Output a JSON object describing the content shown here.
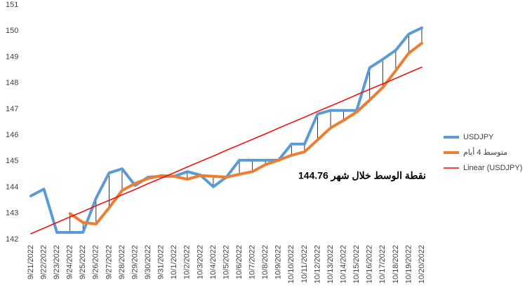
{
  "chart_data": {
    "type": "line",
    "categories": [
      "9/21/2022",
      "9/22/2022",
      "9/23/2022",
      "9/24/2022",
      "9/25/2022",
      "9/26/2022",
      "9/27/2022",
      "9/28/2022",
      "9/29/2022",
      "9/30/2022",
      "9/31/2022",
      "10/1/2022",
      "10/2/2022",
      "10/3/2022",
      "10/4/2022",
      "10/5/2022",
      "10/6/2022",
      "10/7/2022",
      "10/8/2022",
      "10/9/2022",
      "10/10/2022",
      "10/11/2022",
      "10/12/2022",
      "10/13/2022",
      "10/14/2022",
      "10/15/2022",
      "10/16/2022",
      "10/17/2022",
      "10/18/2022",
      "10/19/2022",
      "10/20/2022"
    ],
    "series": [
      {
        "name": "USDJPY",
        "color": "#5b9bd5",
        "values": [
          143.67,
          143.93,
          142.27,
          142.27,
          142.27,
          143.58,
          144.55,
          144.71,
          144.07,
          144.39,
          144.42,
          144.42,
          144.6,
          144.47,
          144.02,
          144.39,
          145.04,
          145.04,
          145.04,
          145.04,
          145.66,
          145.66,
          146.81,
          146.95,
          146.95,
          146.95,
          148.59,
          148.91,
          149.26,
          149.88,
          150.12
        ]
      },
      {
        "name": "متوسط 4  أيام",
        "color": "#ed7d31",
        "values": [
          null,
          null,
          null,
          142.99,
          142.65,
          142.59,
          143.21,
          143.88,
          144.15,
          144.34,
          144.45,
          144.42,
          144.31,
          144.45,
          144.42,
          144.39,
          144.5,
          144.6,
          144.87,
          145.04,
          145.23,
          145.36,
          145.82,
          146.28,
          146.57,
          146.89,
          147.35,
          147.83,
          148.48,
          149.15,
          149.53
        ]
      },
      {
        "name": "Linear (USDJPY)",
        "color": "#ff0000",
        "values": [
          142.22,
          142.43,
          142.65,
          142.86,
          143.07,
          143.29,
          143.5,
          143.71,
          143.92,
          144.14,
          144.35,
          144.56,
          144.78,
          144.99,
          145.2,
          145.42,
          145.63,
          145.84,
          146.05,
          146.27,
          146.48,
          146.69,
          146.91,
          147.12,
          147.33,
          147.55,
          147.76,
          147.97,
          148.18,
          148.4,
          148.61
        ]
      }
    ],
    "annotation": "144.76 نقطة الوسط خلال شهر",
    "ylim": [
      142,
      151
    ],
    "yticks": [
      142,
      143,
      144,
      145,
      146,
      147,
      148,
      149,
      150,
      151
    ],
    "drop_lines": true,
    "legend": "right"
  }
}
